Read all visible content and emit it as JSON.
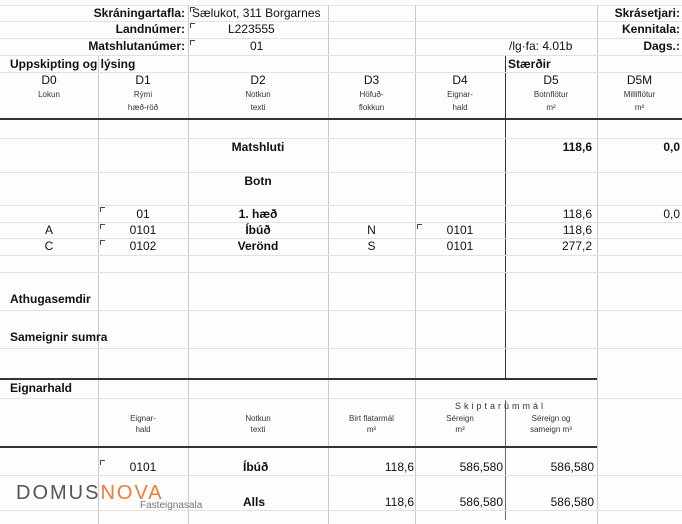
{
  "header": {
    "skraningartafla_label": "Skráningartafla:",
    "skraningartafla_value": "Sælukot, 311 Borgarnes",
    "landnumer_label": "Landnúmer:",
    "landnumer_value": "L223555",
    "matshlutanumer_label": "Matshlutanúmer:",
    "matshlutanumer_value": "01",
    "version": "/lg·fa: 4.01b",
    "skrasetjari_label": "Skrásetjari:",
    "kennitala_label": "Kennitala:",
    "dags_label": "Dags.:"
  },
  "sections": {
    "uppskipting": "Uppskipting og lýsing",
    "staerdir": "Stærðir",
    "athugasemdir": "Athugasemdir",
    "sameignir": "Sameignir sumra",
    "eignarhald": "Eignarhald"
  },
  "columns": [
    {
      "code": "D0",
      "sub1": "Lokun",
      "sub2": ""
    },
    {
      "code": "D1",
      "sub1": "Rými",
      "sub2": "hæð-röð"
    },
    {
      "code": "D2",
      "sub1": "Notkun",
      "sub2": "texti"
    },
    {
      "code": "D3",
      "sub1": "Höfuð-",
      "sub2": "flokkun"
    },
    {
      "code": "D4",
      "sub1": "Eignar-",
      "sub2": "hald"
    },
    {
      "code": "D5",
      "sub1": "Botnflötur",
      "sub2": "m²"
    },
    {
      "code": "D5M",
      "sub1": "Milliflötur",
      "sub2": "m²"
    }
  ],
  "rows": {
    "matshluti": {
      "label": "Matshluti",
      "d5": "118,6",
      "d5m": "0,0"
    },
    "botn": {
      "label": "Botn"
    },
    "haed": {
      "d1": "01",
      "label": "1. hæð",
      "d5": "118,6",
      "d5m": "0,0"
    },
    "a": {
      "d0": "A",
      "d1": "0101",
      "d2": "Íbúð",
      "d3": "N",
      "d4": "0101",
      "d5": "118,6"
    },
    "c": {
      "d0": "C",
      "d1": "0102",
      "d2": "Verönd",
      "d3": "S",
      "d4": "0101",
      "d5": "277,2"
    }
  },
  "eign": {
    "skiptarummal": "Skiptarúmmál",
    "h_eignarhald1": "Eignar-",
    "h_eignarhald2": "hald",
    "h_notkun1": "Notkun",
    "h_notkun2": "texti",
    "h_birt1": "Birt flatarmál",
    "h_birt2": "m²",
    "h_sereign1": "Séreign",
    "h_sereign2": "m³",
    "h_sameign1": "Séreign og",
    "h_sameign2": "sameign m³",
    "row1": {
      "eignarhald": "0101",
      "notkun": "Íbúð",
      "birt": "118,6",
      "sereign": "586,580",
      "sameign": "586,580"
    },
    "total": {
      "label": "Alls",
      "birt": "118,6",
      "sereign": "586,580",
      "sameign": "586,580"
    }
  },
  "logo": {
    "domus": "DOMUS",
    "nova": "NOVA",
    "sub": "Fasteignasala",
    "accent": "#f07a3a"
  }
}
